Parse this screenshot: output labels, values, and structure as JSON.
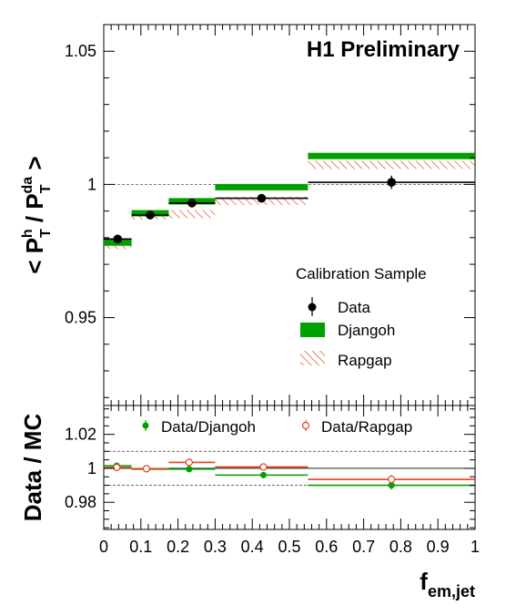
{
  "chart_data": [
    {
      "type": "scatter",
      "panel": "main",
      "annotation": "H1 Preliminary",
      "ylabel": {
        "prefix": "<",
        "num": "P",
        "num_sub": "T",
        "num_sup": "h",
        "slash": "/",
        "den": "P",
        "den_sub": "T",
        "den_sup": "da",
        "suffix": ">"
      },
      "xlim": [
        0,
        1
      ],
      "ylim": [
        0.917,
        1.06
      ],
      "yticks": [
        {
          "v": 0.95,
          "label": "0.95"
        },
        {
          "v": 1.0,
          "label": "1"
        },
        {
          "v": 1.05,
          "label": "1.05"
        }
      ],
      "reference_line": 1.0,
      "legend": {
        "title": "Calibration Sample",
        "position": "right",
        "entries": [
          "Data",
          "Djangoh",
          "Rapgap"
        ]
      },
      "bins": [
        {
          "lo": 0.0,
          "hi": 0.075,
          "data": 0.9795,
          "err": 0.0012,
          "djangoh": 0.978,
          "rapgap": 0.9775
        },
        {
          "lo": 0.075,
          "hi": 0.175,
          "data": 0.9885,
          "err": 0.001,
          "djangoh": 0.989,
          "rapgap": 0.9885
        },
        {
          "lo": 0.175,
          "hi": 0.3,
          "data": 0.993,
          "err": 0.001,
          "djangoh": 0.9935,
          "rapgap": 0.989
        },
        {
          "lo": 0.3,
          "hi": 0.55,
          "data": 0.9948,
          "err": 0.001,
          "djangoh": 0.9988,
          "rapgap": 0.994
        },
        {
          "lo": 0.55,
          "hi": 1.0,
          "data": 1.0008,
          "err": 0.0025,
          "djangoh": 1.0105,
          "rapgap": 1.0075
        }
      ]
    },
    {
      "type": "scatter",
      "panel": "ratio",
      "ylabel": "Data / MC",
      "xlabel": {
        "main": "f",
        "sub": "em,jet"
      },
      "xlim": [
        0,
        1
      ],
      "ylim": [
        0.964,
        1.037
      ],
      "xticks": [
        {
          "v": 0,
          "label": "0"
        },
        {
          "v": 0.1,
          "label": "0.1"
        },
        {
          "v": 0.2,
          "label": "0.2"
        },
        {
          "v": 0.3,
          "label": "0.3"
        },
        {
          "v": 0.4,
          "label": "0.4"
        },
        {
          "v": 0.5,
          "label": "0.5"
        },
        {
          "v": 0.6,
          "label": "0.6"
        },
        {
          "v": 0.7,
          "label": "0.7"
        },
        {
          "v": 0.8,
          "label": "0.8"
        },
        {
          "v": 0.9,
          "label": "0.9"
        },
        {
          "v": 1,
          "label": "1"
        }
      ],
      "yticks": [
        {
          "v": 0.98,
          "label": "0.98"
        },
        {
          "v": 1.0,
          "label": "1"
        },
        {
          "v": 1.02,
          "label": "1.02"
        }
      ],
      "reference_lines": [
        0.99,
        1.0,
        1.01
      ],
      "legend": {
        "position": "top",
        "entries": [
          "Data/Djangoh",
          "Data/Rapgap"
        ]
      },
      "series": [
        {
          "name": "Data/Djangoh",
          "points": [
            {
              "lo": 0.0,
              "hi": 0.075,
              "x": 0.035,
              "y": 1.0015,
              "err": 0.0012
            },
            {
              "lo": 0.075,
              "hi": 0.175,
              "x": 0.115,
              "y": 0.9995,
              "err": 0.001
            },
            {
              "lo": 0.175,
              "hi": 0.3,
              "x": 0.23,
              "y": 0.9995,
              "err": 0.001
            },
            {
              "lo": 0.3,
              "hi": 0.55,
              "x": 0.43,
              "y": 0.996,
              "err": 0.001
            },
            {
              "lo": 0.55,
              "hi": 1.0,
              "x": 0.775,
              "y": 0.99,
              "err": 0.0025
            }
          ]
        },
        {
          "name": "Data/Rapgap",
          "points": [
            {
              "lo": 0.0,
              "hi": 0.075,
              "x": 0.035,
              "y": 1.0005,
              "err": 0.0012
            },
            {
              "lo": 0.075,
              "hi": 0.175,
              "x": 0.115,
              "y": 0.9998,
              "err": 0.001
            },
            {
              "lo": 0.175,
              "hi": 0.3,
              "x": 0.23,
              "y": 1.0035,
              "err": 0.001
            },
            {
              "lo": 0.3,
              "hi": 0.55,
              "x": 0.43,
              "y": 1.0008,
              "err": 0.001
            },
            {
              "lo": 0.55,
              "hi": 1.0,
              "x": 0.775,
              "y": 0.9935,
              "err": 0.0025
            }
          ]
        }
      ]
    }
  ],
  "colors": {
    "data": "#000000",
    "djangoh": "#00a000",
    "rapgap": "#e8401c",
    "reference": "#555555"
  }
}
